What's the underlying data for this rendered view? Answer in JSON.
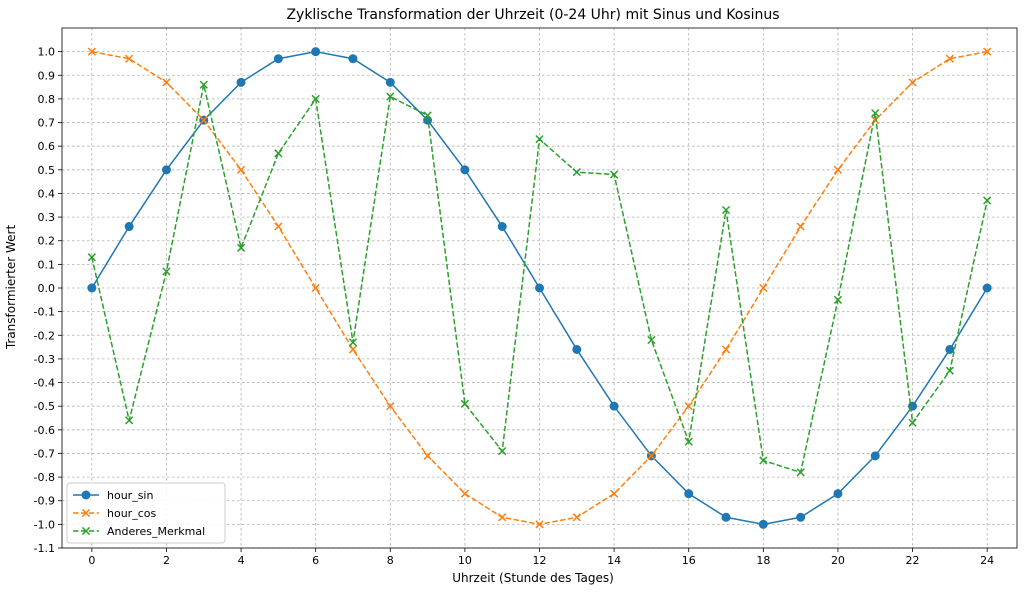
{
  "chart_data": {
    "type": "line",
    "title": "Zyklische Transformation der Uhrzeit (0-24 Uhr) mit Sinus und Kosinus",
    "xlabel": "Uhrzeit (Stunde des Tages)",
    "ylabel": "Transformierter Wert",
    "xlim": [
      -0.8,
      24.8
    ],
    "ylim": [
      -1.1,
      1.1
    ],
    "xticks": [
      0,
      2,
      4,
      6,
      8,
      10,
      12,
      14,
      16,
      18,
      20,
      22,
      24
    ],
    "yticks": [
      -1.1,
      -1.0,
      -0.9,
      -0.8,
      -0.7,
      -0.6,
      -0.5,
      -0.4,
      -0.3,
      -0.2,
      -0.1,
      0.0,
      0.1,
      0.2,
      0.3,
      0.4,
      0.5,
      0.6,
      0.7,
      0.8,
      0.9,
      1.0
    ],
    "grid": true,
    "legend_position": "lower-left",
    "x": [
      0,
      1,
      2,
      3,
      4,
      5,
      6,
      7,
      8,
      9,
      10,
      11,
      12,
      13,
      14,
      15,
      16,
      17,
      18,
      19,
      20,
      21,
      22,
      23,
      24
    ],
    "series": [
      {
        "name": "hour_sin",
        "color": "#1f77b4",
        "marker": "circle",
        "line_style": "solid",
        "values": [
          0.0,
          0.26,
          0.5,
          0.71,
          0.87,
          0.97,
          1.0,
          0.97,
          0.87,
          0.71,
          0.5,
          0.26,
          0.0,
          -0.26,
          -0.5,
          -0.71,
          -0.87,
          -0.97,
          -1.0,
          -0.97,
          -0.87,
          -0.71,
          -0.5,
          -0.26,
          0.0
        ]
      },
      {
        "name": "hour_cos",
        "color": "#ff7f0e",
        "marker": "x",
        "line_style": "dashed",
        "values": [
          1.0,
          0.97,
          0.87,
          0.71,
          0.5,
          0.26,
          0.0,
          -0.26,
          -0.5,
          -0.71,
          -0.87,
          -0.97,
          -1.0,
          -0.97,
          -0.87,
          -0.71,
          -0.5,
          -0.26,
          0.0,
          0.26,
          0.5,
          0.71,
          0.87,
          0.97,
          1.0
        ]
      },
      {
        "name": "Anderes_Merkmal",
        "color": "#2ca02c",
        "marker": "x",
        "line_style": "dashed",
        "values": [
          0.13,
          -0.56,
          0.07,
          0.86,
          0.17,
          0.57,
          0.8,
          -0.23,
          0.81,
          0.73,
          -0.49,
          -0.69,
          0.63,
          0.49,
          0.48,
          -0.22,
          -0.65,
          0.33,
          -0.73,
          -0.78,
          -0.05,
          0.74,
          -0.57,
          -0.35,
          0.37
        ]
      }
    ]
  }
}
